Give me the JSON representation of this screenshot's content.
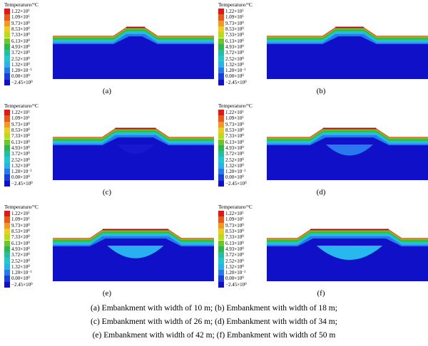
{
  "legend": {
    "title": "Temperature/°C",
    "entries": [
      {
        "mant": "1.22",
        "exp": "1",
        "color": "#e01818"
      },
      {
        "mant": "1.09",
        "exp": "1",
        "color": "#e85a18"
      },
      {
        "mant": "9.73",
        "exp": "0",
        "color": "#f09a20"
      },
      {
        "mant": "8.53",
        "exp": "0",
        "color": "#e8d020"
      },
      {
        "mant": "7.33",
        "exp": "0",
        "color": "#b8dc18"
      },
      {
        "mant": "6.13",
        "exp": "0",
        "color": "#6cc828"
      },
      {
        "mant": "4.93",
        "exp": "0",
        "color": "#2cb84a"
      },
      {
        "mant": "3.72",
        "exp": "0",
        "color": "#20c0a0"
      },
      {
        "mant": "2.52",
        "exp": "0",
        "color": "#20c8d0"
      },
      {
        "mant": "1.32",
        "exp": "0",
        "color": "#28b0f0"
      },
      {
        "mant": "1.20",
        "exp": "−1",
        "color": "#2878f0"
      },
      {
        "mant": "0.00",
        "exp": "0",
        "color": "#1840e0"
      },
      {
        "mant": "−2.45",
        "exp": "0",
        "color": "#1010c8"
      }
    ]
  },
  "panels": [
    {
      "id": "a",
      "label": "(a)",
      "width_m": 10,
      "core_color": "#1010c8"
    },
    {
      "id": "b",
      "label": "(b)",
      "width_m": 18,
      "core_color": "#1010c8"
    },
    {
      "id": "c",
      "label": "(c)",
      "width_m": 26,
      "core_color": "#1818d0"
    },
    {
      "id": "d",
      "label": "(d)",
      "width_m": 34,
      "core_color": "#2878f0"
    },
    {
      "id": "e",
      "label": "(e)",
      "width_m": 42,
      "core_color": "#28b0f0"
    },
    {
      "id": "f",
      "label": "(f)",
      "width_m": 50,
      "core_color": "#28b8f0"
    }
  ],
  "caption": {
    "line1": "(a)  Embankment  with  width  of  10  m; (b) Embankment with width of 18 m;",
    "line2": "(c) Embankment  with width of 26 m; (d) Embankment with width of 34 m;",
    "line3": "(e) Embankment  with width of 42 m; (f) Embankment with width of 50 m"
  }
}
